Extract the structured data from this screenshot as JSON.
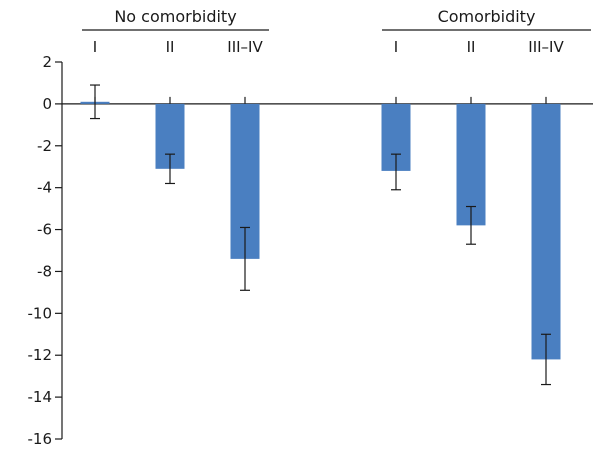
{
  "chart_data": {
    "type": "bar",
    "title": "",
    "xlabel": "",
    "ylabel": "",
    "ylim": [
      -16,
      2
    ],
    "yticks": [
      2,
      0,
      -2,
      -4,
      -6,
      -8,
      -10,
      -12,
      -14,
      -16
    ],
    "bar_color": "#4a7fc1",
    "groups": [
      {
        "name": "No comorbidity",
        "categories": [
          "I",
          "II",
          "III–IV"
        ],
        "values": [
          0.1,
          -3.1,
          -7.4
        ],
        "error_low": [
          -0.7,
          -3.8,
          -8.9
        ],
        "error_high": [
          0.9,
          -2.4,
          -5.9
        ]
      },
      {
        "name": "Comorbidity",
        "categories": [
          "I",
          "II",
          "III–IV"
        ],
        "values": [
          -3.2,
          -5.8,
          -12.2
        ],
        "error_low": [
          -4.1,
          -6.7,
          -13.4
        ],
        "error_high": [
          -2.4,
          -4.9,
          -11.0
        ]
      }
    ]
  }
}
